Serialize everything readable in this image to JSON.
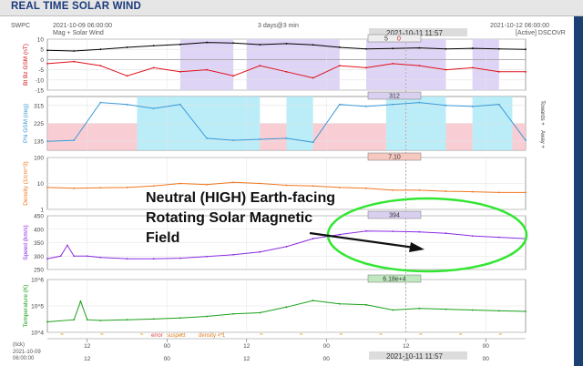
{
  "page": {
    "title": "REAL TIME SOLAR WIND",
    "org": "SWPC",
    "start_time": "2021-10-09 06:00:00",
    "end_time": "2021-10-12 06:00:00",
    "span": "3 days@3 min",
    "current_time": "2021-10-11 11:57",
    "source_left": "Mag + Solar Wind",
    "source_right": "[Active] DSCOVR",
    "bottom_left_label": "(tick)",
    "bottom_left_date": "2021-10-09",
    "bottom_left_time": "06:00:00"
  },
  "legend_bottom": {
    "error": "error",
    "suspect": "suspect",
    "density1": "density < 1"
  },
  "annotation": {
    "lines": [
      "Neutral (HIGH) Earth-facing",
      "Rotating Solar Magnetic",
      "Field"
    ]
  },
  "colors": {
    "bt": "#000000",
    "bz": "#e0101a",
    "phi": "#3a9ad9",
    "density": "#f07820",
    "speed": "#8a2be2",
    "temperature": "#1aa01a",
    "shade_blue": "#aeeaf7",
    "shade_red": "#f8c4cc",
    "shade_purple": "#d8cdf3",
    "highlight": "#32e632"
  },
  "chart_data": [
    {
      "type": "line",
      "panel": "mag",
      "ylabel": "Bt  Bz GSM (nT)",
      "yticks": [
        10,
        5,
        0,
        -5,
        -10,
        -15
      ],
      "ylim": [
        -15,
        10
      ],
      "readout": [
        "5",
        "0"
      ],
      "x_unit": "hours since 2021-10-09 06:00",
      "series": [
        {
          "name": "Bt",
          "x": [
            0,
            4,
            8,
            12,
            16,
            20,
            24,
            28,
            32,
            36,
            40,
            44,
            48,
            52,
            56,
            60,
            64,
            68,
            72
          ],
          "values": [
            4.5,
            4.2,
            5,
            6,
            6.8,
            7.4,
            8.4,
            8.1,
            7.3,
            7.8,
            7.2,
            6,
            5.2,
            5.4,
            5.7,
            5.2,
            5.5,
            5.2,
            5
          ]
        },
        {
          "name": "Bz",
          "x": [
            0,
            4,
            8,
            12,
            16,
            20,
            24,
            28,
            32,
            36,
            40,
            44,
            48,
            52,
            56,
            60,
            64,
            68,
            72
          ],
          "values": [
            -2,
            -1,
            -3,
            -8,
            -4,
            -6,
            -5,
            -8,
            -3,
            -6,
            -9,
            -3,
            -4,
            -2,
            -3,
            -5,
            -4,
            -6,
            -6
          ]
        }
      ]
    },
    {
      "type": "line",
      "panel": "phi",
      "ylabel": "Phi GSM (deg)",
      "yticks": [
        315,
        225,
        135
      ],
      "ylim": [
        90,
        360
      ],
      "readout": "312",
      "right_labels": [
        "Towards +",
        "Away +"
      ],
      "x_unit": "hours since 2021-10-09 06:00",
      "series": [
        {
          "name": "Phi",
          "x": [
            0,
            4,
            8,
            12,
            16,
            20,
            24,
            28,
            32,
            36,
            40,
            44,
            48,
            52,
            56,
            60,
            64,
            68,
            72
          ],
          "values": [
            135,
            140,
            330,
            320,
            300,
            320,
            150,
            140,
            145,
            150,
            130,
            320,
            310,
            320,
            330,
            315,
            310,
            320,
            140
          ]
        }
      ]
    },
    {
      "type": "line",
      "panel": "density",
      "scale": "log",
      "ylabel": "Density (1/cm^3)",
      "yticks": [
        100,
        10,
        1
      ],
      "ylim": [
        1,
        100
      ],
      "readout": "7.10",
      "x_unit": "hours since 2021-10-09 06:00",
      "series": [
        {
          "name": "Density",
          "x": [
            0,
            4,
            8,
            12,
            16,
            20,
            24,
            28,
            32,
            36,
            40,
            44,
            48,
            52,
            56,
            60,
            64,
            68,
            72
          ],
          "values": [
            7,
            6.5,
            6.8,
            7,
            8,
            10,
            9,
            11,
            10,
            8.5,
            8,
            7,
            6.5,
            5.5,
            5.5,
            5,
            4.8,
            4.5,
            4.5
          ]
        }
      ]
    },
    {
      "type": "line",
      "panel": "speed",
      "ylabel": "Speed (km/s)",
      "yticks": [
        450,
        400,
        350,
        300,
        250
      ],
      "ylim": [
        250,
        450
      ],
      "readout": "394",
      "x_unit": "hours since 2021-10-09 06:00",
      "series": [
        {
          "name": "Speed",
          "x": [
            0,
            2,
            3,
            4,
            6,
            8,
            12,
            16,
            20,
            24,
            28,
            32,
            36,
            40,
            44,
            48,
            52,
            56,
            60,
            64,
            68,
            72
          ],
          "values": [
            290,
            300,
            340,
            300,
            300,
            295,
            290,
            290,
            292,
            298,
            305,
            315,
            335,
            365,
            380,
            393,
            392,
            390,
            385,
            375,
            370,
            365
          ]
        }
      ]
    },
    {
      "type": "line",
      "panel": "temperature",
      "scale": "log",
      "ylabel": "Temperature (K)",
      "yticks": [
        "10^6",
        "10^5",
        "10^4"
      ],
      "ylim": [
        10000,
        1000000
      ],
      "readout": "6.18e+4",
      "x_unit": "hours since 2021-10-09 06:00",
      "series": [
        {
          "name": "Temperature",
          "x": [
            0,
            4,
            5,
            6,
            8,
            12,
            16,
            20,
            24,
            28,
            32,
            36,
            40,
            44,
            48,
            52,
            56,
            60,
            64,
            68,
            72
          ],
          "values": [
            25000,
            30000,
            150000,
            30000,
            28000,
            30000,
            32000,
            35000,
            40000,
            50000,
            55000,
            90000,
            160000,
            120000,
            110000,
            70000,
            80000,
            75000,
            70000,
            65000,
            62000
          ]
        }
      ]
    }
  ],
  "x_axis": {
    "x_unit": "hours since 2021-10-09 06:00",
    "ticks": [
      {
        "x": 6,
        "label": "12"
      },
      {
        "x": 18,
        "label": "00"
      },
      {
        "x": 30,
        "label": "12"
      },
      {
        "x": 42,
        "label": "00"
      },
      {
        "x": 54,
        "label": "12"
      },
      {
        "x": 66,
        "label": "00"
      }
    ],
    "current_x": 53.95
  }
}
